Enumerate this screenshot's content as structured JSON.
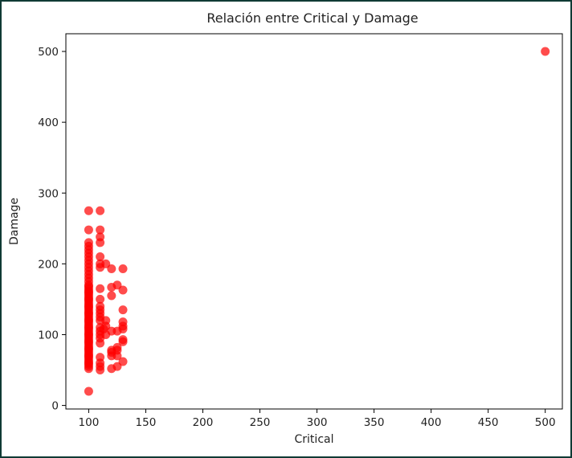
{
  "chart_data": {
    "type": "scatter",
    "title": "Relación entre Critical y Damage",
    "xlabel": "Critical",
    "ylabel": "Damage",
    "xlim": [
      80,
      515
    ],
    "ylim": [
      -5,
      525
    ],
    "xticks": [
      100,
      150,
      200,
      250,
      300,
      350,
      400,
      450,
      500
    ],
    "yticks": [
      0,
      100,
      200,
      300,
      400,
      500
    ],
    "grid": false,
    "point_color": "#ff0000",
    "point_opacity": 0.7,
    "points": [
      {
        "x": 100,
        "y": 20
      },
      {
        "x": 100,
        "y": 52
      },
      {
        "x": 100,
        "y": 55
      },
      {
        "x": 100,
        "y": 58
      },
      {
        "x": 100,
        "y": 60
      },
      {
        "x": 100,
        "y": 62
      },
      {
        "x": 100,
        "y": 65
      },
      {
        "x": 100,
        "y": 68
      },
      {
        "x": 100,
        "y": 70
      },
      {
        "x": 100,
        "y": 72
      },
      {
        "x": 100,
        "y": 75
      },
      {
        "x": 100,
        "y": 78
      },
      {
        "x": 100,
        "y": 80
      },
      {
        "x": 100,
        "y": 82
      },
      {
        "x": 100,
        "y": 85
      },
      {
        "x": 100,
        "y": 88
      },
      {
        "x": 100,
        "y": 90
      },
      {
        "x": 100,
        "y": 92
      },
      {
        "x": 100,
        "y": 95
      },
      {
        "x": 100,
        "y": 98
      },
      {
        "x": 100,
        "y": 100
      },
      {
        "x": 100,
        "y": 102
      },
      {
        "x": 100,
        "y": 105
      },
      {
        "x": 100,
        "y": 108
      },
      {
        "x": 100,
        "y": 110
      },
      {
        "x": 100,
        "y": 112
      },
      {
        "x": 100,
        "y": 115
      },
      {
        "x": 100,
        "y": 118
      },
      {
        "x": 100,
        "y": 120
      },
      {
        "x": 100,
        "y": 122
      },
      {
        "x": 100,
        "y": 125
      },
      {
        "x": 100,
        "y": 128
      },
      {
        "x": 100,
        "y": 130
      },
      {
        "x": 100,
        "y": 132
      },
      {
        "x": 100,
        "y": 135
      },
      {
        "x": 100,
        "y": 138
      },
      {
        "x": 100,
        "y": 140
      },
      {
        "x": 100,
        "y": 142
      },
      {
        "x": 100,
        "y": 145
      },
      {
        "x": 100,
        "y": 148
      },
      {
        "x": 100,
        "y": 150
      },
      {
        "x": 100,
        "y": 152
      },
      {
        "x": 100,
        "y": 155
      },
      {
        "x": 100,
        "y": 158
      },
      {
        "x": 100,
        "y": 160
      },
      {
        "x": 100,
        "y": 162
      },
      {
        "x": 100,
        "y": 165
      },
      {
        "x": 100,
        "y": 168
      },
      {
        "x": 100,
        "y": 170
      },
      {
        "x": 100,
        "y": 175
      },
      {
        "x": 100,
        "y": 180
      },
      {
        "x": 100,
        "y": 185
      },
      {
        "x": 100,
        "y": 190
      },
      {
        "x": 100,
        "y": 195
      },
      {
        "x": 100,
        "y": 200
      },
      {
        "x": 100,
        "y": 205
      },
      {
        "x": 100,
        "y": 210
      },
      {
        "x": 100,
        "y": 215
      },
      {
        "x": 100,
        "y": 220
      },
      {
        "x": 100,
        "y": 225
      },
      {
        "x": 100,
        "y": 230
      },
      {
        "x": 100,
        "y": 248
      },
      {
        "x": 100,
        "y": 275
      },
      {
        "x": 110,
        "y": 50
      },
      {
        "x": 110,
        "y": 55
      },
      {
        "x": 110,
        "y": 60
      },
      {
        "x": 110,
        "y": 68
      },
      {
        "x": 110,
        "y": 88
      },
      {
        "x": 110,
        "y": 95
      },
      {
        "x": 110,
        "y": 100
      },
      {
        "x": 110,
        "y": 105
      },
      {
        "x": 110,
        "y": 110
      },
      {
        "x": 110,
        "y": 120
      },
      {
        "x": 110,
        "y": 125
      },
      {
        "x": 110,
        "y": 130
      },
      {
        "x": 110,
        "y": 135
      },
      {
        "x": 110,
        "y": 140
      },
      {
        "x": 110,
        "y": 150
      },
      {
        "x": 110,
        "y": 165
      },
      {
        "x": 110,
        "y": 195
      },
      {
        "x": 110,
        "y": 200
      },
      {
        "x": 110,
        "y": 210
      },
      {
        "x": 110,
        "y": 230
      },
      {
        "x": 110,
        "y": 238
      },
      {
        "x": 110,
        "y": 248
      },
      {
        "x": 110,
        "y": 275
      },
      {
        "x": 113,
        "y": 108
      },
      {
        "x": 115,
        "y": 100
      },
      {
        "x": 115,
        "y": 112
      },
      {
        "x": 115,
        "y": 120
      },
      {
        "x": 115,
        "y": 200
      },
      {
        "x": 120,
        "y": 52
      },
      {
        "x": 120,
        "y": 70
      },
      {
        "x": 120,
        "y": 75
      },
      {
        "x": 120,
        "y": 78
      },
      {
        "x": 120,
        "y": 105
      },
      {
        "x": 120,
        "y": 155
      },
      {
        "x": 120,
        "y": 167
      },
      {
        "x": 120,
        "y": 193
      },
      {
        "x": 125,
        "y": 55
      },
      {
        "x": 125,
        "y": 70
      },
      {
        "x": 125,
        "y": 78
      },
      {
        "x": 125,
        "y": 82
      },
      {
        "x": 125,
        "y": 105
      },
      {
        "x": 125,
        "y": 170
      },
      {
        "x": 130,
        "y": 62
      },
      {
        "x": 130,
        "y": 90
      },
      {
        "x": 130,
        "y": 93
      },
      {
        "x": 130,
        "y": 108
      },
      {
        "x": 130,
        "y": 112
      },
      {
        "x": 130,
        "y": 118
      },
      {
        "x": 130,
        "y": 135
      },
      {
        "x": 130,
        "y": 163
      },
      {
        "x": 130,
        "y": 193
      },
      {
        "x": 500,
        "y": 500
      }
    ]
  }
}
